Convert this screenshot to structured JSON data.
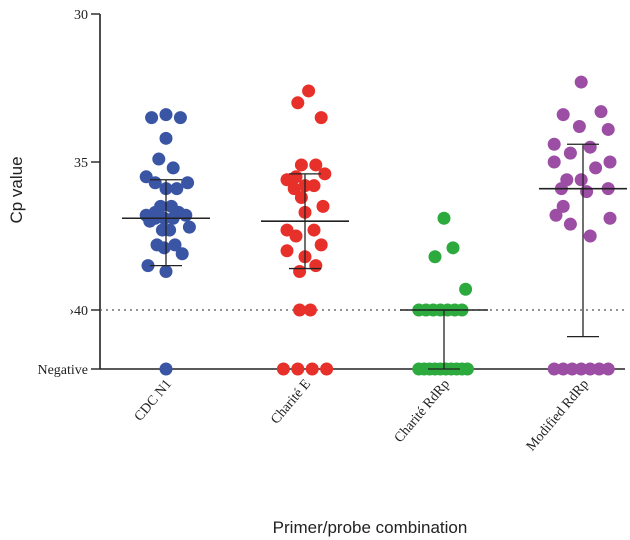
{
  "chart_data": {
    "type": "scatter",
    "xlabel": "Primer/probe combination",
    "ylabel": "Cp value",
    "y_ticks": [
      {
        "label": "30",
        "value": 30
      },
      {
        "label": "35",
        "value": 35
      },
      {
        "label": "›40",
        "value": 40
      },
      {
        "label": "Negative",
        "value": "negative"
      }
    ],
    "ylim": [
      30,
      42
    ],
    "reference_line": {
      "value": 40,
      "style": "dotted"
    },
    "categories": [
      "CDC N1",
      "Charité E",
      "Charité RdRp",
      "Modified RdRp"
    ],
    "series": [
      {
        "category": "CDC N1",
        "color": "#3a55a4",
        "points": [
          {
            "x": -0.4,
            "y": 33.5
          },
          {
            "x": 0.0,
            "y": 33.4
          },
          {
            "x": 0.4,
            "y": 33.5
          },
          {
            "x": 0.0,
            "y": 34.2
          },
          {
            "x": -0.2,
            "y": 34.9
          },
          {
            "x": 0.2,
            "y": 35.2
          },
          {
            "x": -0.55,
            "y": 35.5
          },
          {
            "x": -0.3,
            "y": 35.7
          },
          {
            "x": 0.0,
            "y": 35.9
          },
          {
            "x": 0.3,
            "y": 35.9
          },
          {
            "x": 0.6,
            "y": 35.7
          },
          {
            "x": -0.15,
            "y": 36.5
          },
          {
            "x": 0.15,
            "y": 36.5
          },
          {
            "x": -0.3,
            "y": 36.7
          },
          {
            "x": 0.35,
            "y": 36.7
          },
          {
            "x": -0.55,
            "y": 36.8
          },
          {
            "x": 0.55,
            "y": 36.8
          },
          {
            "x": -0.3,
            "y": 36.9
          },
          {
            "x": -0.05,
            "y": 36.9
          },
          {
            "x": 0.2,
            "y": 36.9
          },
          {
            "x": -0.45,
            "y": 37.0
          },
          {
            "x": 0.65,
            "y": 37.2
          },
          {
            "x": -0.1,
            "y": 37.3
          },
          {
            "x": 0.1,
            "y": 37.3
          },
          {
            "x": -0.25,
            "y": 37.8
          },
          {
            "x": 0.25,
            "y": 37.8
          },
          {
            "x": -0.05,
            "y": 37.9
          },
          {
            "x": 0.45,
            "y": 38.1
          },
          {
            "x": -0.5,
            "y": 38.5
          },
          {
            "x": 0.0,
            "y": 38.7
          },
          {
            "x": 0.0,
            "y": "negative"
          }
        ],
        "mean": 36.9,
        "sd_range": [
          35.6,
          38.5
        ]
      },
      {
        "category": "Charité E",
        "color": "#e8302a",
        "points": [
          {
            "x": 0.1,
            "y": 32.6
          },
          {
            "x": -0.2,
            "y": 33.0
          },
          {
            "x": 0.45,
            "y": 33.5
          },
          {
            "x": -0.1,
            "y": 35.1
          },
          {
            "x": 0.3,
            "y": 35.1
          },
          {
            "x": -0.25,
            "y": 35.5
          },
          {
            "x": 0.55,
            "y": 35.4
          },
          {
            "x": -0.5,
            "y": 35.6
          },
          {
            "x": 0.0,
            "y": 35.8
          },
          {
            "x": 0.25,
            "y": 35.8
          },
          {
            "x": -0.3,
            "y": 35.9
          },
          {
            "x": -0.1,
            "y": 36.2
          },
          {
            "x": 0.5,
            "y": 36.5
          },
          {
            "x": 0.0,
            "y": 36.7
          },
          {
            "x": -0.5,
            "y": 37.3
          },
          {
            "x": -0.25,
            "y": 37.5
          },
          {
            "x": 0.25,
            "y": 37.3
          },
          {
            "x": 0.45,
            "y": 37.8
          },
          {
            "x": -0.5,
            "y": 38.0
          },
          {
            "x": 0.0,
            "y": 38.2
          },
          {
            "x": 0.3,
            "y": 38.5
          },
          {
            "x": -0.15,
            "y": 38.7
          },
          {
            "x": -0.15,
            "y": 40.0
          },
          {
            "x": 0.15,
            "y": 40.0
          },
          {
            "x": -0.6,
            "y": "negative"
          },
          {
            "x": -0.2,
            "y": "negative"
          },
          {
            "x": 0.2,
            "y": "negative"
          },
          {
            "x": 0.6,
            "y": "negative"
          }
        ],
        "mean": 37.0,
        "sd_range": [
          35.4,
          38.6
        ]
      },
      {
        "category": "Charité RdRp",
        "color": "#2daa3e",
        "points": [
          {
            "x": 0.0,
            "y": 36.9
          },
          {
            "x": 0.25,
            "y": 37.9
          },
          {
            "x": -0.25,
            "y": 38.2
          },
          {
            "x": 0.6,
            "y": 39.3
          },
          {
            "x": -0.7,
            "y": 40.0
          },
          {
            "x": -0.5,
            "y": 40.0
          },
          {
            "x": -0.3,
            "y": 40.0
          },
          {
            "x": -0.1,
            "y": 40.0
          },
          {
            "x": 0.1,
            "y": 40.0
          },
          {
            "x": 0.3,
            "y": 40.0
          },
          {
            "x": 0.5,
            "y": 40.0
          },
          {
            "x": -0.7,
            "y": "negative"
          },
          {
            "x": -0.55,
            "y": "negative"
          },
          {
            "x": -0.4,
            "y": "negative"
          },
          {
            "x": -0.25,
            "y": "negative"
          },
          {
            "x": -0.1,
            "y": "negative"
          },
          {
            "x": 0.05,
            "y": "negative"
          },
          {
            "x": 0.2,
            "y": "negative"
          },
          {
            "x": 0.35,
            "y": "negative"
          },
          {
            "x": 0.5,
            "y": "negative"
          },
          {
            "x": 0.65,
            "y": "negative"
          }
        ],
        "mean": 40.0,
        "sd_range": [
          40.0,
          42.0
        ]
      },
      {
        "category": "Modified RdRp",
        "color": "#9b4ea3",
        "points": [
          {
            "x": -0.05,
            "y": 32.3
          },
          {
            "x": -0.55,
            "y": 33.4
          },
          {
            "x": 0.5,
            "y": 33.3
          },
          {
            "x": -0.1,
            "y": 33.8
          },
          {
            "x": 0.7,
            "y": 33.9
          },
          {
            "x": -0.8,
            "y": 34.4
          },
          {
            "x": 0.2,
            "y": 34.5
          },
          {
            "x": -0.35,
            "y": 34.7
          },
          {
            "x": -0.8,
            "y": 35.0
          },
          {
            "x": 0.75,
            "y": 35.0
          },
          {
            "x": 0.35,
            "y": 35.2
          },
          {
            "x": -0.45,
            "y": 35.6
          },
          {
            "x": -0.05,
            "y": 35.6
          },
          {
            "x": 0.7,
            "y": 35.9
          },
          {
            "x": -0.6,
            "y": 35.9
          },
          {
            "x": 0.1,
            "y": 36.0
          },
          {
            "x": -0.55,
            "y": 36.5
          },
          {
            "x": -0.75,
            "y": 36.8
          },
          {
            "x": 0.75,
            "y": 36.9
          },
          {
            "x": -0.35,
            "y": 37.1
          },
          {
            "x": 0.2,
            "y": 37.5
          },
          {
            "x": -0.8,
            "y": "negative"
          },
          {
            "x": -0.55,
            "y": "negative"
          },
          {
            "x": -0.3,
            "y": "negative"
          },
          {
            "x": -0.05,
            "y": "negative"
          },
          {
            "x": 0.2,
            "y": "negative"
          },
          {
            "x": 0.45,
            "y": "negative"
          },
          {
            "x": 0.7,
            "y": "negative"
          }
        ],
        "mean": 35.9,
        "sd_range": [
          34.4,
          40.9
        ]
      }
    ]
  }
}
